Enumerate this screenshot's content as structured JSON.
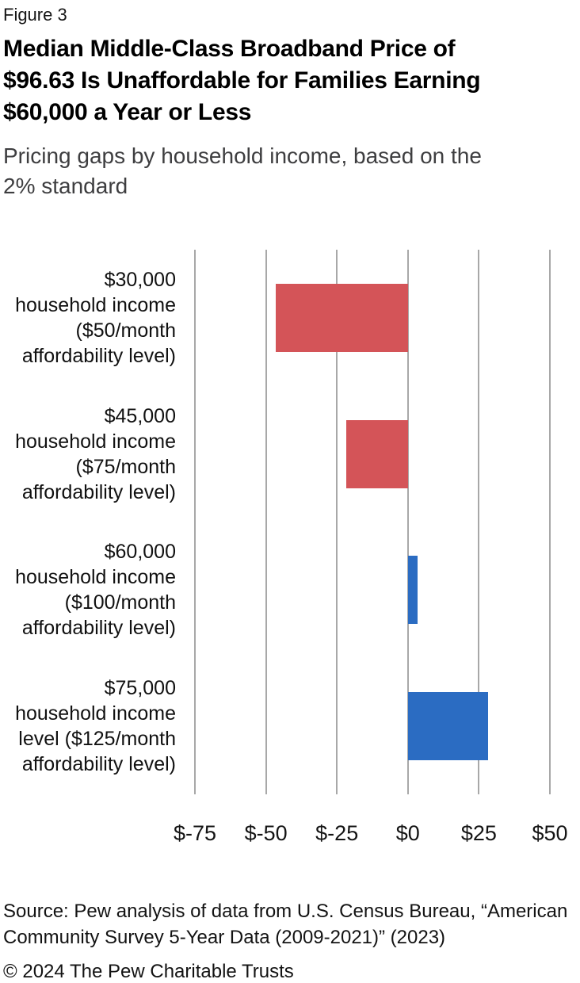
{
  "header": {
    "figure_label": "Figure 3",
    "title": "Median Middle-Class Broadband Price of\n$96.63 Is Unaffordable for Families Earning\n$60,000 a Year or Less",
    "subtitle": "Pricing gaps by household income, based on the\n2% standard"
  },
  "chart_data": {
    "type": "bar",
    "orientation": "horizontal",
    "title": "Median Middle-Class Broadband Price of $96.63 Is Unaffordable for Families Earning $60,000 a Year or Less",
    "subtitle": "Pricing gaps by household income, based on the 2% standard",
    "categories": [
      "$30,000\nhousehold income\n($50/month\naffordability level)",
      "$45,000\nhousehold income\n($75/month\naffordability level)",
      "$60,000\nhousehold income\n($100/month\naffordability level)",
      "$75,000\nhousehold income\nlevel ($125/month\naffordability level)"
    ],
    "values": [
      -46.63,
      -21.63,
      3.37,
      28.37
    ],
    "xlim": [
      -75,
      50
    ],
    "ticks": [
      {
        "value": -75,
        "label": "$-75"
      },
      {
        "value": -50,
        "label": "$-50"
      },
      {
        "value": -25,
        "label": "$-25"
      },
      {
        "value": 0,
        "label": "$0"
      },
      {
        "value": 25,
        "label": "$25"
      },
      {
        "value": 50,
        "label": "$50"
      }
    ],
    "grid": "vertical-gridlines-only",
    "legend": "none",
    "colors": {
      "negative": "#d45458",
      "positive": "#2b6cc2",
      "gridline": "#a8a8a8"
    }
  },
  "footer": {
    "source": "Source: Pew analysis of data from U.S. Census Bureau, “American\nCommunity Survey 5-Year Data (2009-2021)” (2023)",
    "copyright": "© 2024 The Pew Charitable Trusts"
  }
}
